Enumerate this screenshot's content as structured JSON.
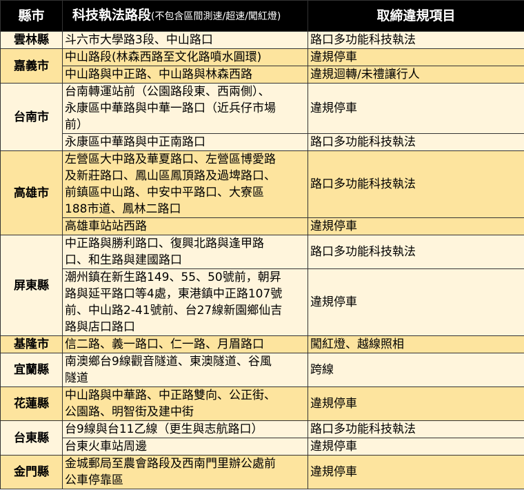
{
  "header": {
    "county": "縣市",
    "section": "科技執法路段",
    "section_note": "(不包含區間測速/超速/闖紅燈)",
    "violation": "取締違規項目"
  },
  "groups": [
    {
      "county": "雲林縣",
      "rows": [
        {
          "section": [
            "斗六市大學路3段、中山路口"
          ],
          "violation": "路口多功能科技執法"
        }
      ]
    },
    {
      "county": "嘉義市",
      "rows": [
        {
          "section": [
            "中山路段(林森西路至文化路噴水圓環)"
          ],
          "violation": "違規停車"
        },
        {
          "section": [
            "中山路與中正路、中山路與林森西路"
          ],
          "violation": "違規迴轉/未禮讓行人"
        }
      ]
    },
    {
      "county": "台南市",
      "rows": [
        {
          "section": [
            "台南轉運站前（公園路段東、西兩側）、",
            "永康區中華路與中華一路口（近兵仔市場",
            "前）"
          ],
          "violation": "違規停車"
        },
        {
          "section": [
            "永康區中華路與中正南路口"
          ],
          "violation": "路口多功能科技執法"
        }
      ]
    },
    {
      "county": "高雄市",
      "rows": [
        {
          "section": [
            "左營區大中路及華夏路口、左營區博愛路",
            "及新莊路口、鳳山區鳳頂路及過埤路口、",
            "前鎮區中山路、中安中平路口、大寮區",
            "188市道、鳳林二路口"
          ],
          "violation": "路口多功能科技執法"
        },
        {
          "section": [
            "高雄車站站西路"
          ],
          "violation": "違規停車"
        }
      ]
    },
    {
      "county": "屏東縣",
      "rows": [
        {
          "section": [
            "中正路與勝利路口、復興北路與逢甲路",
            "口、和生路與建國路口"
          ],
          "violation": "路口多功能科技執法"
        },
        {
          "section": [
            "潮州鎮在新生路149、55、50號前，朝昇",
            "路與延平路口等4處，東港鎮中正路107號",
            "前、中山路2-41號前、台27線新園鄉仙吉",
            "路與店口路口"
          ],
          "violation": "違規停車"
        }
      ]
    },
    {
      "county": "基隆市",
      "rows": [
        {
          "section": [
            "信二路、義一路口、仁一路、月眉路口"
          ],
          "violation": "闖紅燈、越線照相"
        }
      ]
    },
    {
      "county": "宜蘭縣",
      "rows": [
        {
          "section": [
            "南澳鄉台9線觀音隧道、東澳隧道、谷風",
            "隧道"
          ],
          "violation": "跨線"
        }
      ]
    },
    {
      "county": "花蓮縣",
      "rows": [
        {
          "section": [
            "中山路與中華路、中正路雙向、公正街、",
            "公園路、明智街及建中街"
          ],
          "violation": "違規停車"
        }
      ]
    },
    {
      "county": "台東縣",
      "rows": [
        {
          "section": [
            "台9線與台11乙線（更生與志航路口）"
          ],
          "violation": "路口多功能科技執法"
        },
        {
          "section": [
            "台東火車站周邊"
          ],
          "violation": "違規停車"
        }
      ]
    },
    {
      "county": "金門縣",
      "rows": [
        {
          "section": [
            "金城郵局至農會路段及西南門里辦公處前",
            "公車停靠區"
          ],
          "violation": "違規停車"
        }
      ]
    }
  ]
}
